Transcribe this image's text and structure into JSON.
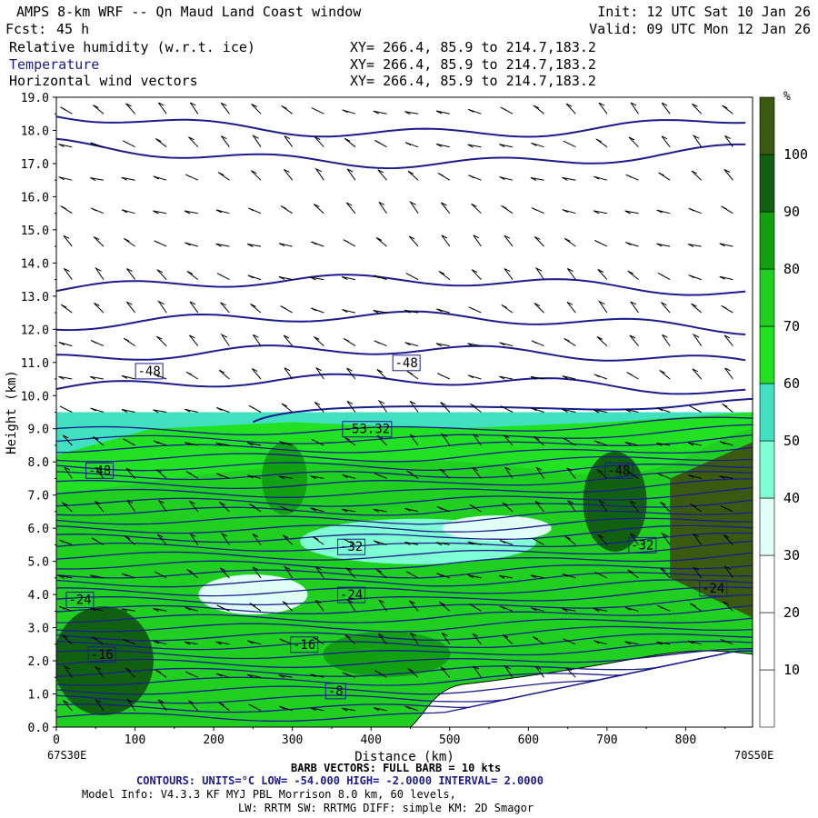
{
  "header": {
    "title": "AMPS 8-km WRF -- Qn Maud Land Coast window",
    "init": "Init: 12 UTC Sat 10 Jan 26",
    "fcst_label": "Fcst:",
    "fcst_value": "45 h",
    "valid": "Valid: 09 UTC Mon 12 Jan 26",
    "fields": [
      {
        "name": "Relative humidity (w.r.t. ice)",
        "xy": "XY= 266.4, 85.9 to 214.7,183.2"
      },
      {
        "name": "Temperature",
        "xy": "XY= 266.4, 85.9 to 214.7,183.2"
      },
      {
        "name": "Horizontal wind vectors",
        "xy": "XY= 266.4, 85.9 to 214.7,183.2"
      }
    ]
  },
  "footer": {
    "left_point": "67S30E",
    "right_point": "70S50E",
    "barb_text": "BARB VECTORS: FULL BARB = 10 kts",
    "contours_text": "CONTOURS: UNITS=°C LOW= -54.000 HIGH= -2.0000 INTERVAL= 2.0000",
    "model_info": "Model Info: V4.3.3 KF MYJ PBL Morrison 8.0 km, 60 levels,",
    "model_info2": "LW: RRTM SW: RRTMG DIFF: simple KM: 2D Smagor"
  },
  "colors": {
    "rh_bands": [
      "#ffffff",
      "#ffffff",
      "#ffffff",
      "#e0fff8",
      "#7fffd4",
      "#40e0c0",
      "#22e022",
      "#20cf20",
      "#10a010",
      "#106010",
      "#3a5a10"
    ],
    "contour": "#1c1c8c"
  },
  "chart_data": {
    "type": "heatmap",
    "title": "",
    "xlabel": "Distance (km)",
    "ylabel": "Height (km)",
    "xlim": [
      0,
      885
    ],
    "ylim": [
      0,
      19
    ],
    "x_ticks": [
      0,
      100,
      200,
      300,
      400,
      500,
      600,
      700,
      800
    ],
    "y_ticks": [
      "0.0",
      "1.0",
      "2.0",
      "3.0",
      "4.0",
      "5.0",
      "6.0",
      "7.0",
      "8.0",
      "9.0",
      "10.0",
      "11.0",
      "12.0",
      "13.0",
      "14.0",
      "15.0",
      "16.0",
      "17.0",
      "18.0",
      "19.0"
    ],
    "colorbar": {
      "unit": "%",
      "levels": [
        10,
        20,
        30,
        40,
        50,
        60,
        70,
        80,
        90,
        100
      ]
    },
    "contour_labels": [
      {
        "text": "-48",
        "x": 118,
        "y": 10.75
      },
      {
        "text": "-48",
        "x": 445,
        "y": 11.0
      },
      {
        "text": "-53.32",
        "x": 395,
        "y": 9.0
      },
      {
        "text": "-48",
        "x": 55,
        "y": 7.75
      },
      {
        "text": "-48",
        "x": 715,
        "y": 7.75
      },
      {
        "text": "-32",
        "x": 375,
        "y": 5.45
      },
      {
        "text": "-32",
        "x": 745,
        "y": 5.5
      },
      {
        "text": "-24",
        "x": 30,
        "y": 3.85
      },
      {
        "text": "-24",
        "x": 375,
        "y": 4.0
      },
      {
        "text": "-24",
        "x": 835,
        "y": 4.2
      },
      {
        "text": "-16",
        "x": 58,
        "y": 2.2
      },
      {
        "text": "-16",
        "x": 315,
        "y": 2.5
      },
      {
        "text": "-8",
        "x": 355,
        "y": 1.1
      }
    ]
  }
}
